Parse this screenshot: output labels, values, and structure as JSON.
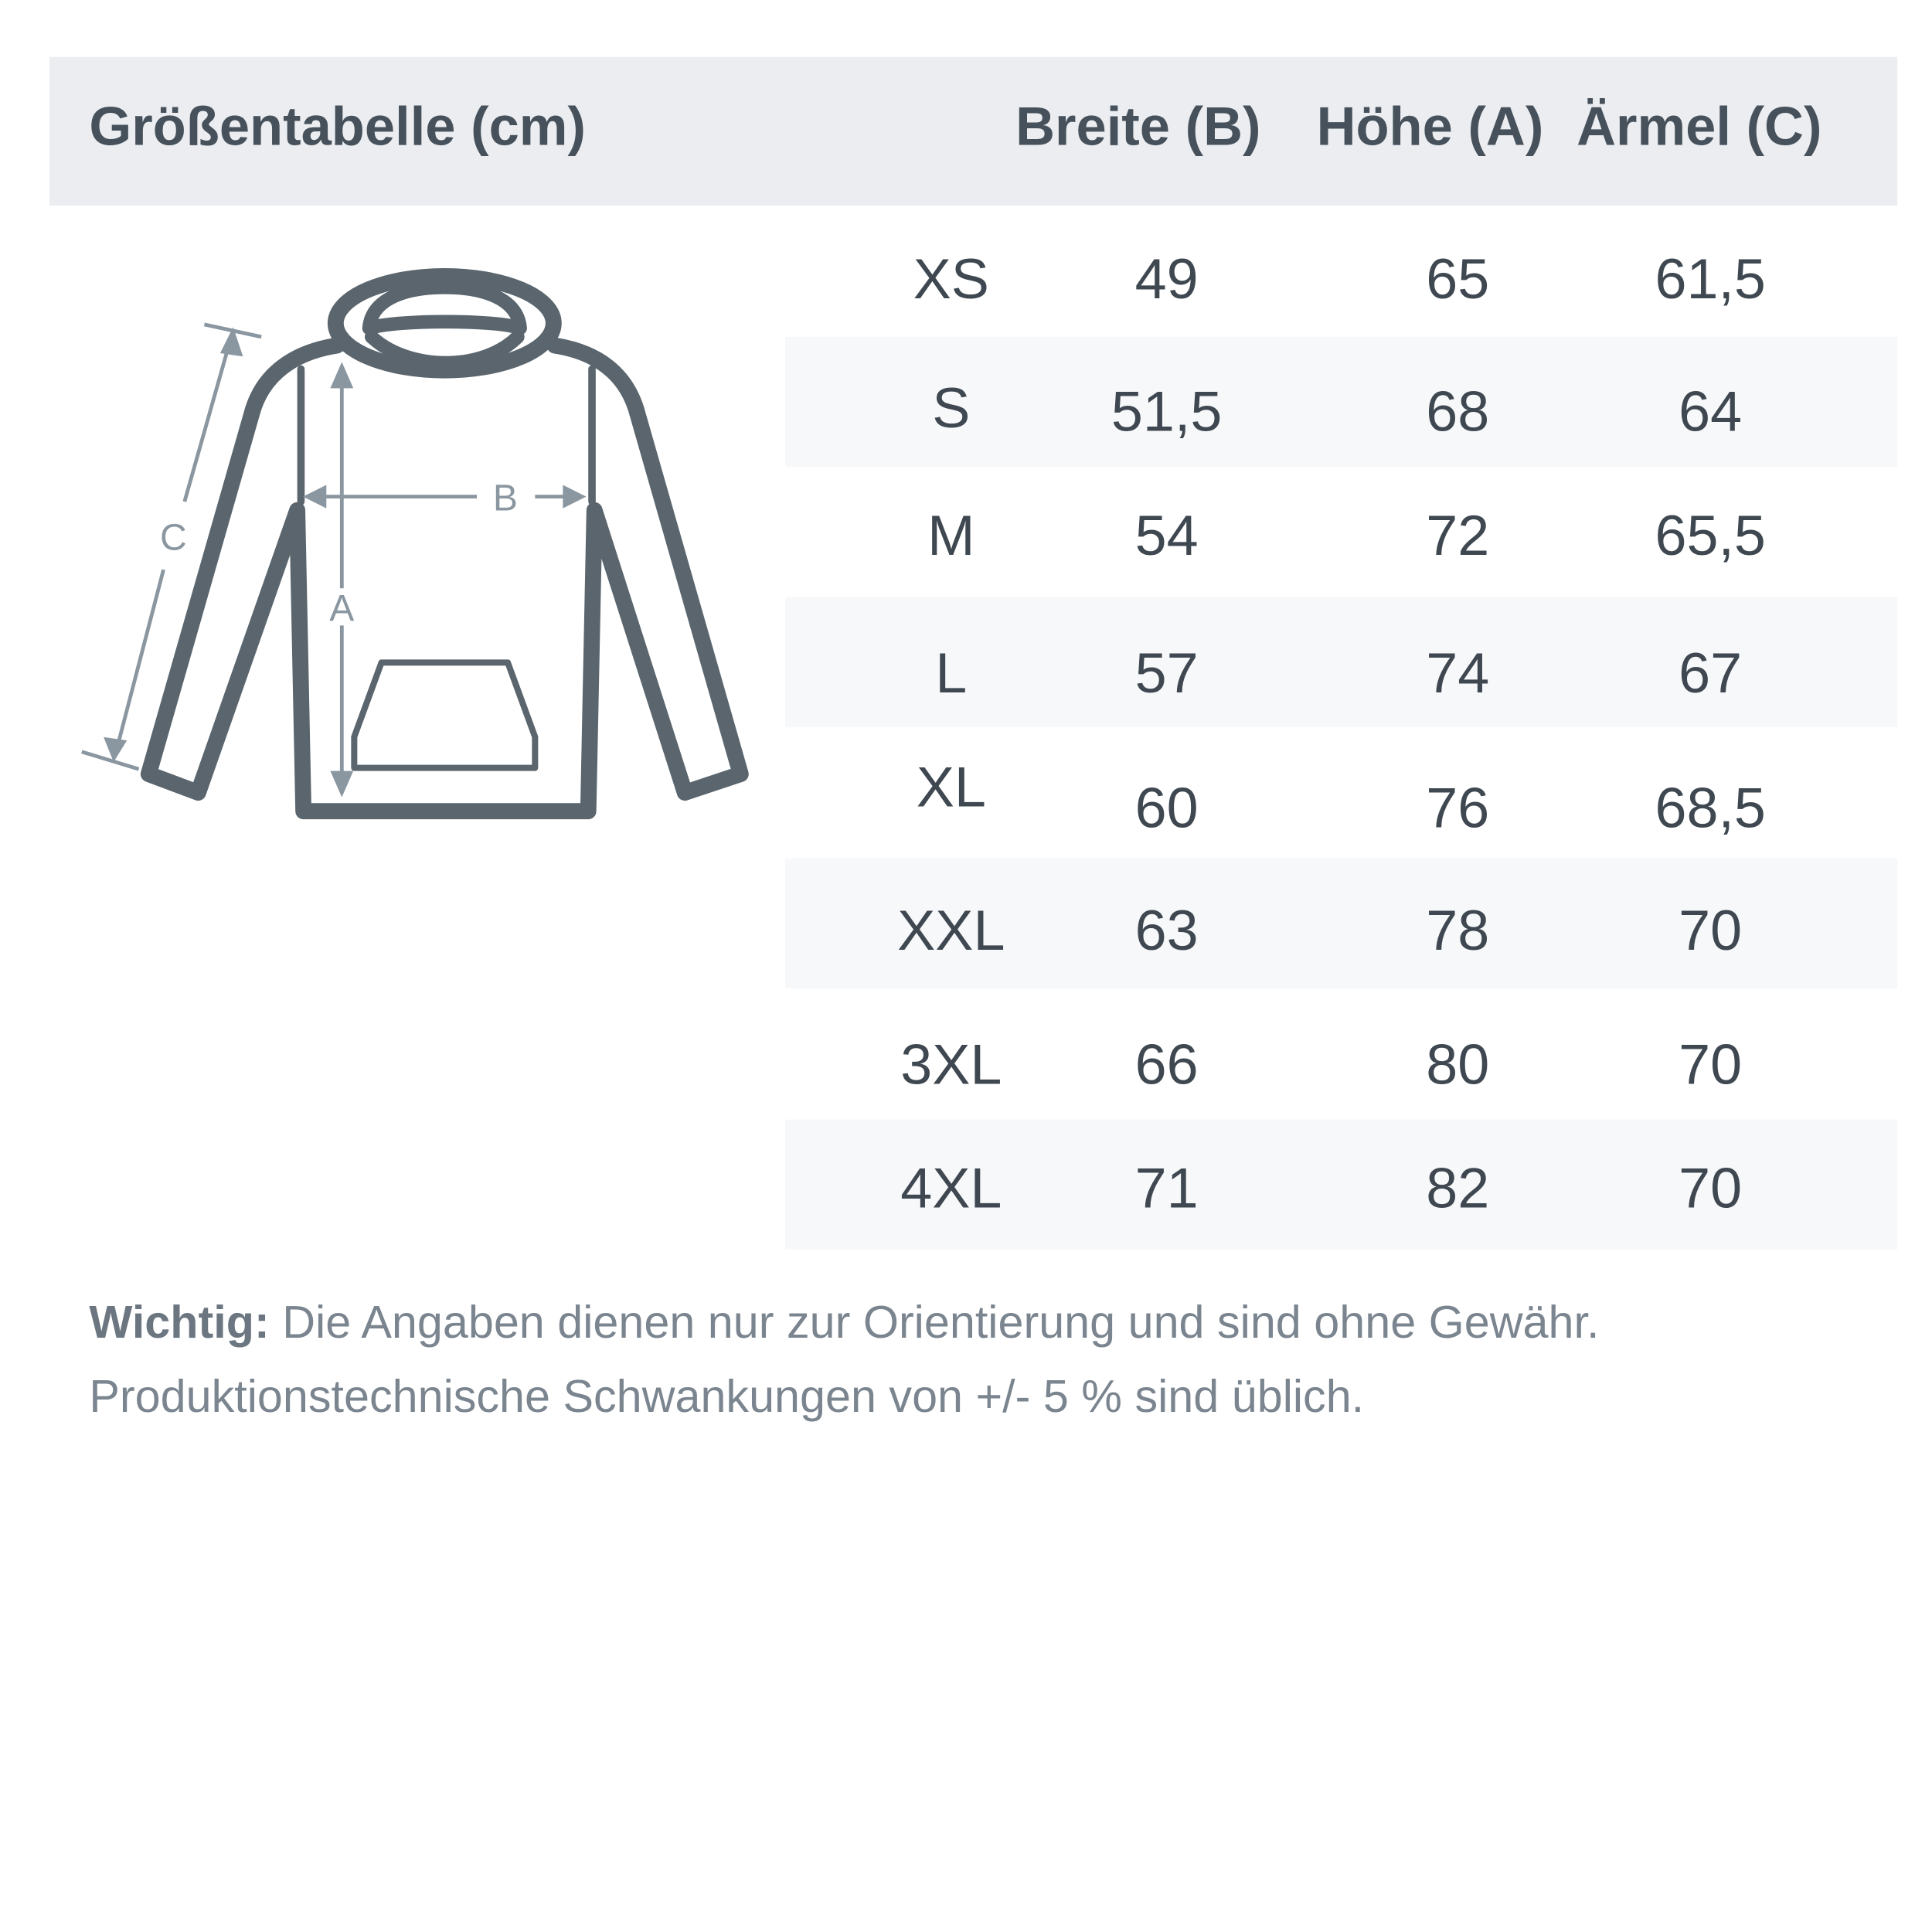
{
  "header": {
    "title": "Größentabelle (cm)",
    "columns": [
      "Breite (B)",
      "Höhe (A)",
      "Ärmel (C)"
    ]
  },
  "diagram": {
    "labels": {
      "a": "A",
      "b": "B",
      "c": "C"
    },
    "icon": "hoodie-outline"
  },
  "rows": [
    {
      "size": "XS",
      "breite": "49",
      "hoehe": "65",
      "aermel": "61,5"
    },
    {
      "size": "S",
      "breite": "51,5",
      "hoehe": "68",
      "aermel": "64"
    },
    {
      "size": "M",
      "breite": "54",
      "hoehe": "72",
      "aermel": "65,5"
    },
    {
      "size": "L",
      "breite": "57",
      "hoehe": "74",
      "aermel": "67"
    },
    {
      "size": "XL",
      "breite": "60",
      "hoehe": "76",
      "aermel": "68,5"
    },
    {
      "size": "XXL",
      "breite": "63",
      "hoehe": "78",
      "aermel": "70"
    },
    {
      "size": "3XL",
      "breite": "66",
      "hoehe": "80",
      "aermel": "70"
    },
    {
      "size": "4XL",
      "breite": "71",
      "hoehe": "82",
      "aermel": "70"
    }
  ],
  "note": {
    "label": "Wichtig:",
    "line1": "Die Angaben dienen nur zur Orientierung und sind ohne Gewähr.",
    "line2": "Produktionstechnische Schwankungen von +/- 5 % sind üblich."
  },
  "colors": {
    "header_bg": "#ebedf1",
    "stripe_bg": "#f7f8fa",
    "outline": "#5a656d",
    "measure": "#8a96a0"
  }
}
